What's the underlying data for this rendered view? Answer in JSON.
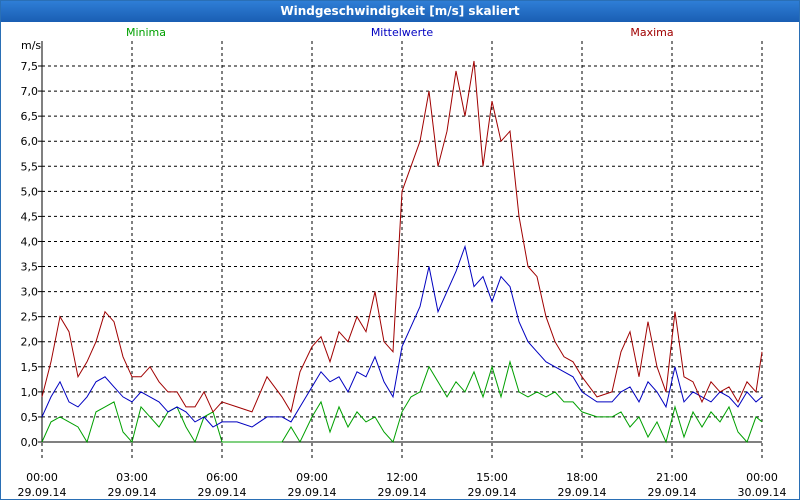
{
  "window": {
    "title": "Windgeschwindigkeit [m/s] skaliert"
  },
  "chart_data": {
    "type": "line",
    "title": "Windgeschwindigkeit [m/s] skaliert",
    "unit_label": "m/s",
    "ylim": [
      0,
      7.5
    ],
    "y_ticks": [
      "0,0",
      "0,5",
      "1,0",
      "1,5",
      "2,0",
      "2,5",
      "3,0",
      "3,5",
      "4,0",
      "4,5",
      "5,0",
      "5,5",
      "6,0",
      "6,5",
      "7,0",
      "7,5"
    ],
    "x_ticks": [
      {
        "time": "00:00",
        "date": "29.09.14"
      },
      {
        "time": "03:00",
        "date": "29.09.14"
      },
      {
        "time": "06:00",
        "date": "29.09.14"
      },
      {
        "time": "09:00",
        "date": "29.09.14"
      },
      {
        "time": "12:00",
        "date": "29.09.14"
      },
      {
        "time": "15:00",
        "date": "29.09.14"
      },
      {
        "time": "18:00",
        "date": "29.09.14"
      },
      {
        "time": "21:00",
        "date": "29.09.14"
      },
      {
        "time": "00:00",
        "date": "30.09.14"
      }
    ],
    "grid": true,
    "legend_position": "top",
    "x_unit": "hours since 29.09.14 00:00",
    "series": [
      {
        "name": "Minima",
        "color": "#00a000",
        "points": [
          [
            0,
            0
          ],
          [
            0.3,
            0.4
          ],
          [
            0.6,
            0.5
          ],
          [
            0.9,
            0.4
          ],
          [
            1.2,
            0.3
          ],
          [
            1.5,
            0.0
          ],
          [
            1.8,
            0.6
          ],
          [
            2.1,
            0.7
          ],
          [
            2.4,
            0.8
          ],
          [
            2.7,
            0.2
          ],
          [
            3.0,
            0.0
          ],
          [
            3.3,
            0.7
          ],
          [
            3.6,
            0.5
          ],
          [
            3.9,
            0.3
          ],
          [
            4.2,
            0.6
          ],
          [
            4.5,
            0.7
          ],
          [
            4.8,
            0.3
          ],
          [
            5.1,
            0.0
          ],
          [
            5.4,
            0.5
          ],
          [
            5.7,
            0.6
          ],
          [
            6.0,
            0.0
          ],
          [
            6.5,
            0.0
          ],
          [
            7.0,
            0.0
          ],
          [
            7.5,
            0.0
          ],
          [
            8.0,
            0.0
          ],
          [
            8.3,
            0.3
          ],
          [
            8.6,
            0.0
          ],
          [
            9.0,
            0.5
          ],
          [
            9.3,
            0.8
          ],
          [
            9.6,
            0.2
          ],
          [
            9.9,
            0.7
          ],
          [
            10.2,
            0.3
          ],
          [
            10.5,
            0.6
          ],
          [
            10.8,
            0.4
          ],
          [
            11.1,
            0.5
          ],
          [
            11.4,
            0.2
          ],
          [
            11.7,
            0.0
          ],
          [
            12.0,
            0.6
          ],
          [
            12.3,
            0.9
          ],
          [
            12.6,
            1.0
          ],
          [
            12.9,
            1.5
          ],
          [
            13.2,
            1.2
          ],
          [
            13.5,
            0.9
          ],
          [
            13.8,
            1.2
          ],
          [
            14.1,
            1.0
          ],
          [
            14.4,
            1.4
          ],
          [
            14.7,
            0.9
          ],
          [
            15.0,
            1.5
          ],
          [
            15.3,
            0.9
          ],
          [
            15.6,
            1.6
          ],
          [
            15.9,
            1.0
          ],
          [
            16.2,
            0.9
          ],
          [
            16.5,
            1.0
          ],
          [
            16.8,
            0.9
          ],
          [
            17.1,
            1.0
          ],
          [
            17.4,
            0.8
          ],
          [
            17.7,
            0.8
          ],
          [
            18.0,
            0.6
          ],
          [
            18.5,
            0.5
          ],
          [
            19.0,
            0.5
          ],
          [
            19.3,
            0.6
          ],
          [
            19.6,
            0.3
          ],
          [
            19.9,
            0.5
          ],
          [
            20.2,
            0.1
          ],
          [
            20.5,
            0.4
          ],
          [
            20.8,
            0.0
          ],
          [
            21.1,
            0.7
          ],
          [
            21.4,
            0.1
          ],
          [
            21.7,
            0.6
          ],
          [
            22.0,
            0.3
          ],
          [
            22.3,
            0.6
          ],
          [
            22.6,
            0.4
          ],
          [
            22.9,
            0.7
          ],
          [
            23.2,
            0.2
          ],
          [
            23.5,
            0.0
          ],
          [
            23.8,
            0.5
          ],
          [
            24.0,
            0.4
          ]
        ]
      },
      {
        "name": "Mittelwerte",
        "color": "#0000c0",
        "points": [
          [
            0,
            0.5
          ],
          [
            0.3,
            0.9
          ],
          [
            0.6,
            1.2
          ],
          [
            0.9,
            0.8
          ],
          [
            1.2,
            0.7
          ],
          [
            1.5,
            0.9
          ],
          [
            1.8,
            1.2
          ],
          [
            2.1,
            1.3
          ],
          [
            2.4,
            1.1
          ],
          [
            2.7,
            0.9
          ],
          [
            3.0,
            0.8
          ],
          [
            3.3,
            1.0
          ],
          [
            3.6,
            0.9
          ],
          [
            3.9,
            0.8
          ],
          [
            4.2,
            0.6
          ],
          [
            4.5,
            0.7
          ],
          [
            4.8,
            0.6
          ],
          [
            5.1,
            0.4
          ],
          [
            5.4,
            0.5
          ],
          [
            5.7,
            0.3
          ],
          [
            6.0,
            0.4
          ],
          [
            6.5,
            0.4
          ],
          [
            7.0,
            0.3
          ],
          [
            7.5,
            0.5
          ],
          [
            8.0,
            0.5
          ],
          [
            8.3,
            0.4
          ],
          [
            8.6,
            0.7
          ],
          [
            9.0,
            1.1
          ],
          [
            9.3,
            1.4
          ],
          [
            9.6,
            1.2
          ],
          [
            9.9,
            1.3
          ],
          [
            10.2,
            1.0
          ],
          [
            10.5,
            1.4
          ],
          [
            10.8,
            1.3
          ],
          [
            11.1,
            1.7
          ],
          [
            11.4,
            1.2
          ],
          [
            11.7,
            0.9
          ],
          [
            12.0,
            1.9
          ],
          [
            12.3,
            2.3
          ],
          [
            12.6,
            2.7
          ],
          [
            12.9,
            3.5
          ],
          [
            13.2,
            2.6
          ],
          [
            13.5,
            3.0
          ],
          [
            13.8,
            3.4
          ],
          [
            14.1,
            3.9
          ],
          [
            14.4,
            3.1
          ],
          [
            14.7,
            3.3
          ],
          [
            15.0,
            2.8
          ],
          [
            15.3,
            3.3
          ],
          [
            15.6,
            3.1
          ],
          [
            15.9,
            2.4
          ],
          [
            16.2,
            2.0
          ],
          [
            16.5,
            1.8
          ],
          [
            16.8,
            1.6
          ],
          [
            17.1,
            1.5
          ],
          [
            17.4,
            1.4
          ],
          [
            17.7,
            1.3
          ],
          [
            18.0,
            1.0
          ],
          [
            18.5,
            0.8
          ],
          [
            19.0,
            0.8
          ],
          [
            19.3,
            1.0
          ],
          [
            19.6,
            1.1
          ],
          [
            19.9,
            0.8
          ],
          [
            20.2,
            1.2
          ],
          [
            20.5,
            1.0
          ],
          [
            20.8,
            0.7
          ],
          [
            21.1,
            1.5
          ],
          [
            21.4,
            0.8
          ],
          [
            21.7,
            1.0
          ],
          [
            22.0,
            0.9
          ],
          [
            22.3,
            0.8
          ],
          [
            22.6,
            1.0
          ],
          [
            22.9,
            0.9
          ],
          [
            23.2,
            0.7
          ],
          [
            23.5,
            1.0
          ],
          [
            23.8,
            0.8
          ],
          [
            24.0,
            0.9
          ]
        ]
      },
      {
        "name": "Maxima",
        "color": "#a00000",
        "points": [
          [
            0,
            0.9
          ],
          [
            0.3,
            1.6
          ],
          [
            0.6,
            2.5
          ],
          [
            0.9,
            2.2
          ],
          [
            1.2,
            1.3
          ],
          [
            1.5,
            1.6
          ],
          [
            1.8,
            2.0
          ],
          [
            2.1,
            2.6
          ],
          [
            2.4,
            2.4
          ],
          [
            2.7,
            1.7
          ],
          [
            3.0,
            1.3
          ],
          [
            3.3,
            1.3
          ],
          [
            3.6,
            1.5
          ],
          [
            3.9,
            1.2
          ],
          [
            4.2,
            1.0
          ],
          [
            4.5,
            1.0
          ],
          [
            4.8,
            0.7
          ],
          [
            5.1,
            0.7
          ],
          [
            5.4,
            1.0
          ],
          [
            5.7,
            0.6
          ],
          [
            6.0,
            0.8
          ],
          [
            6.5,
            0.7
          ],
          [
            7.0,
            0.6
          ],
          [
            7.5,
            1.3
          ],
          [
            8.0,
            0.9
          ],
          [
            8.3,
            0.6
          ],
          [
            8.6,
            1.4
          ],
          [
            9.0,
            1.9
          ],
          [
            9.3,
            2.1
          ],
          [
            9.6,
            1.6
          ],
          [
            9.9,
            2.2
          ],
          [
            10.2,
            2.0
          ],
          [
            10.5,
            2.5
          ],
          [
            10.8,
            2.2
          ],
          [
            11.1,
            3.0
          ],
          [
            11.4,
            2.0
          ],
          [
            11.7,
            1.8
          ],
          [
            12.0,
            5.0
          ],
          [
            12.3,
            5.5
          ],
          [
            12.6,
            6.0
          ],
          [
            12.9,
            7.0
          ],
          [
            13.2,
            5.5
          ],
          [
            13.5,
            6.2
          ],
          [
            13.8,
            7.4
          ],
          [
            14.1,
            6.5
          ],
          [
            14.4,
            7.6
          ],
          [
            14.7,
            5.5
          ],
          [
            15.0,
            6.8
          ],
          [
            15.3,
            6.0
          ],
          [
            15.6,
            6.2
          ],
          [
            15.9,
            4.5
          ],
          [
            16.2,
            3.5
          ],
          [
            16.5,
            3.3
          ],
          [
            16.8,
            2.5
          ],
          [
            17.1,
            2.0
          ],
          [
            17.4,
            1.7
          ],
          [
            17.7,
            1.6
          ],
          [
            18.0,
            1.3
          ],
          [
            18.5,
            0.9
          ],
          [
            19.0,
            1.0
          ],
          [
            19.3,
            1.8
          ],
          [
            19.6,
            2.2
          ],
          [
            19.9,
            1.3
          ],
          [
            20.2,
            2.4
          ],
          [
            20.5,
            1.5
          ],
          [
            20.8,
            1.0
          ],
          [
            21.1,
            2.6
          ],
          [
            21.4,
            1.3
          ],
          [
            21.7,
            1.2
          ],
          [
            22.0,
            0.8
          ],
          [
            22.3,
            1.2
          ],
          [
            22.6,
            1.0
          ],
          [
            22.9,
            1.1
          ],
          [
            23.2,
            0.8
          ],
          [
            23.5,
            1.2
          ],
          [
            23.8,
            1.0
          ],
          [
            24.0,
            1.8
          ]
        ]
      }
    ]
  }
}
